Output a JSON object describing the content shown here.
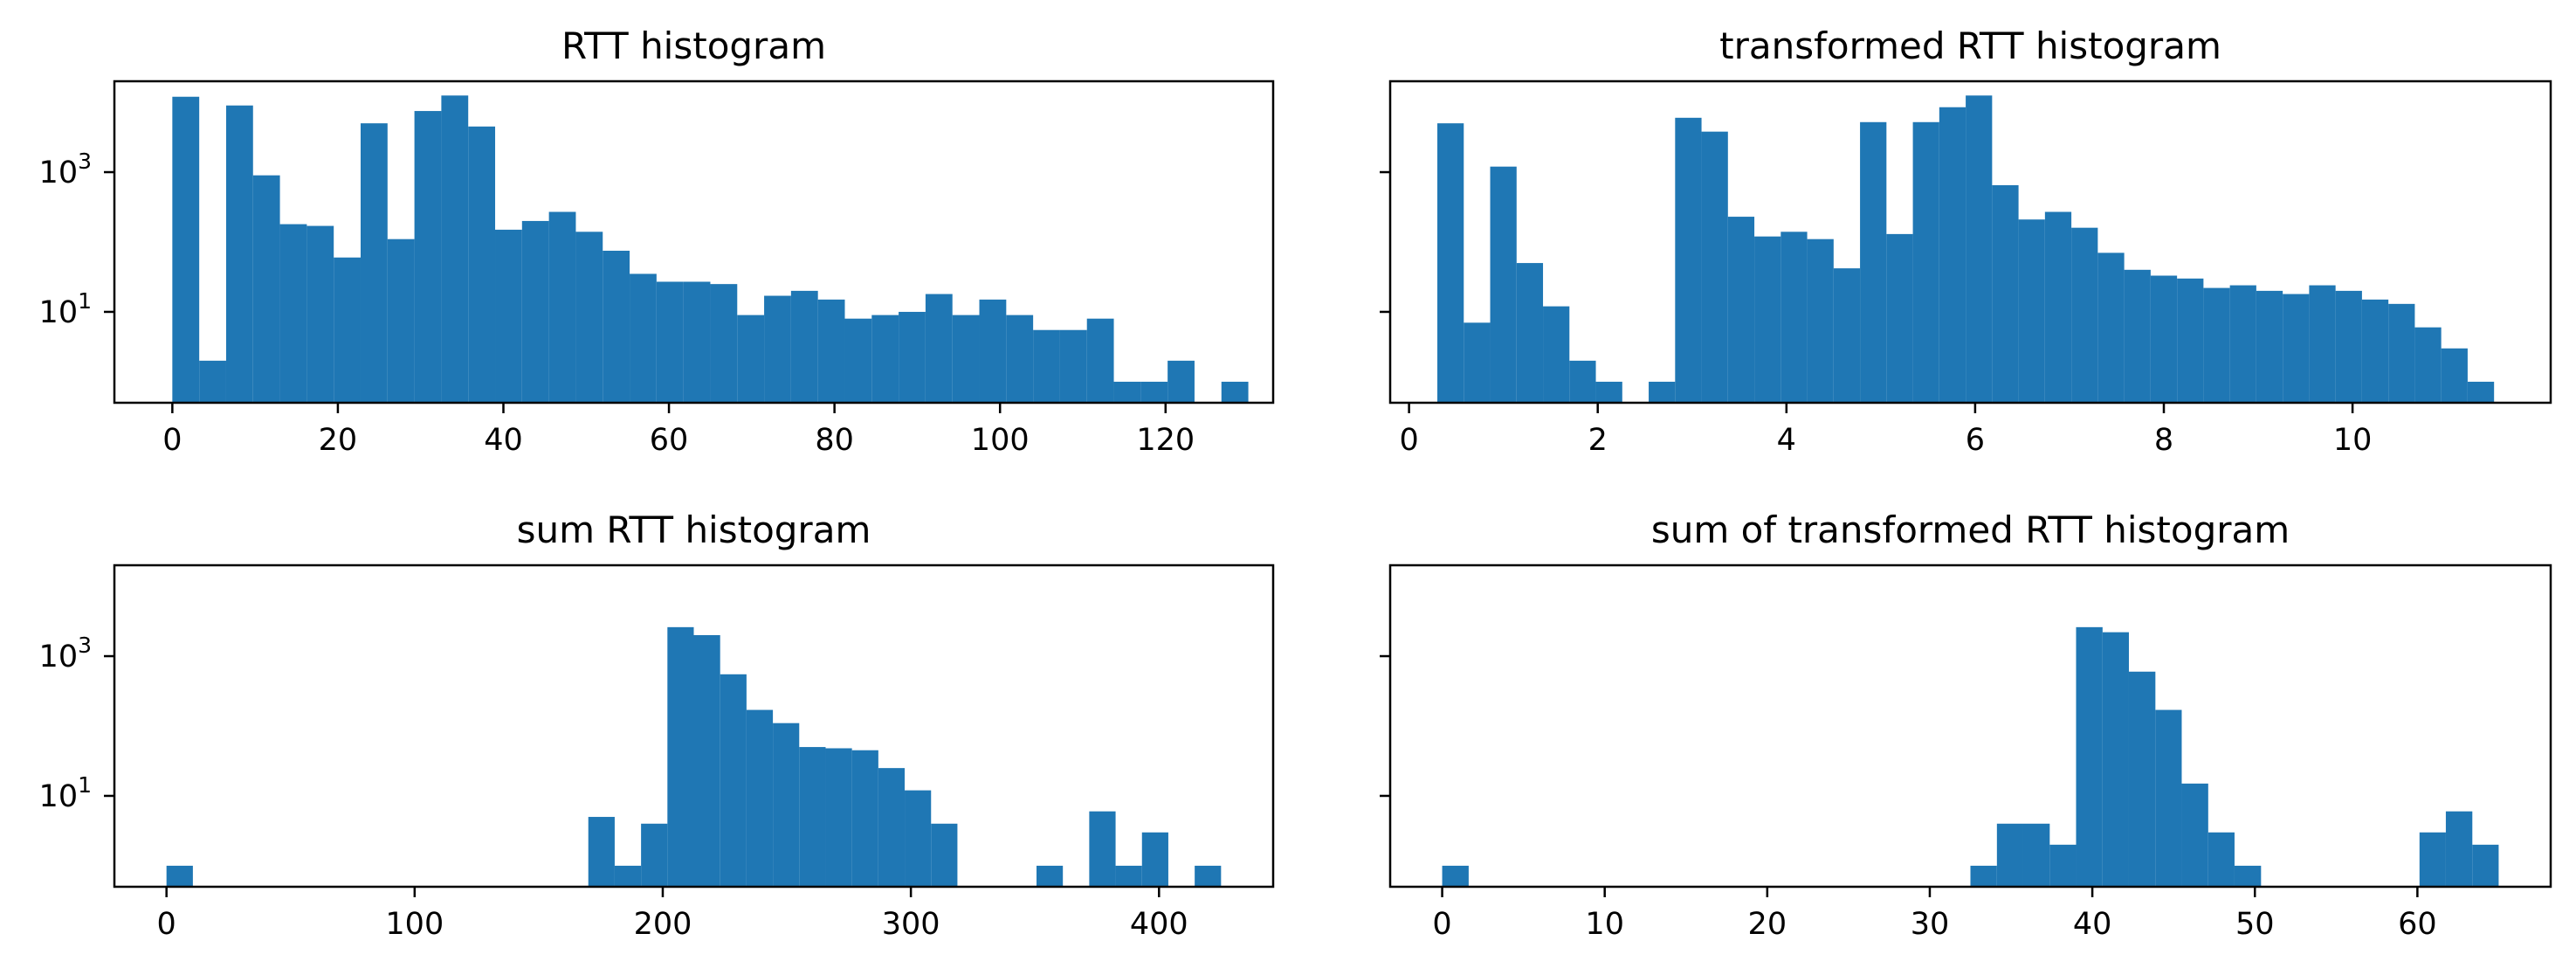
{
  "figure": {
    "bar_color": "#1f77b4",
    "shared_y": true,
    "y_scale": "log"
  },
  "chart_data": [
    {
      "type": "bar",
      "title": "RTT histogram",
      "xlabel": "",
      "ylabel": "",
      "xlim": [
        -7,
        133
      ],
      "ylim": [
        0.5,
        20000
      ],
      "xticks": [
        0,
        20,
        40,
        60,
        80,
        100,
        120
      ],
      "yticks": [
        {
          "value": 10,
          "base": "10",
          "exp": "1"
        },
        {
          "value": 1000,
          "base": "10",
          "exp": "3"
        }
      ],
      "show_ytick_labels": true,
      "bin_edges": [
        0,
        3.25,
        6.5,
        9.75,
        13,
        16.25,
        19.5,
        22.75,
        26,
        29.25,
        32.5,
        35.75,
        39,
        42.25,
        45.5,
        48.75,
        52,
        55.25,
        58.5,
        61.75,
        65,
        68.25,
        71.5,
        74.75,
        78,
        81.25,
        84.5,
        87.75,
        91,
        94.25,
        97.5,
        100.75,
        104,
        107.25,
        110.5,
        113.75,
        117,
        120.25,
        123.5,
        126.75,
        130
      ],
      "counts": [
        12000,
        2,
        9000,
        900,
        180,
        170,
        60,
        5000,
        110,
        7500,
        12500,
        4500,
        150,
        200,
        270,
        140,
        75,
        35,
        27,
        27,
        25,
        9,
        17,
        20,
        15,
        8,
        9,
        10,
        18,
        9,
        15,
        9,
        5.5,
        5.5,
        8,
        1,
        1,
        2,
        0,
        1
      ]
    },
    {
      "type": "bar",
      "title": "transformed RTT histogram",
      "xlabel": "",
      "ylabel": "",
      "xlim": [
        -0.2,
        12.1
      ],
      "ylim": [
        0.5,
        20000
      ],
      "xticks": [
        0,
        2,
        4,
        6,
        8,
        10
      ],
      "yticks": [
        {
          "value": 10,
          "base": "10",
          "exp": "1"
        },
        {
          "value": 1000,
          "base": "10",
          "exp": "3"
        }
      ],
      "show_ytick_labels": false,
      "bin_edges": [
        0.3,
        0.58,
        0.86,
        1.14,
        1.42,
        1.7,
        1.98,
        2.26,
        2.54,
        2.82,
        3.1,
        3.38,
        3.66,
        3.94,
        4.22,
        4.5,
        4.78,
        5.06,
        5.34,
        5.62,
        5.9,
        6.18,
        6.46,
        6.74,
        7.02,
        7.3,
        7.58,
        7.86,
        8.14,
        8.42,
        8.7,
        8.98,
        9.26,
        9.54,
        9.82,
        10.1,
        10.38,
        10.66,
        10.94,
        11.22,
        11.5
      ],
      "counts": [
        5000,
        7,
        1200,
        50,
        12,
        2,
        1,
        0,
        1,
        6000,
        3800,
        230,
        120,
        140,
        110,
        42,
        5200,
        130,
        5200,
        8500,
        12500,
        650,
        210,
        270,
        160,
        70,
        40,
        33,
        30,
        22,
        24,
        20,
        18,
        24,
        20,
        15,
        13,
        6,
        3,
        1
      ]
    },
    {
      "type": "bar",
      "title": "sum RTT histogram",
      "xlabel": "",
      "ylabel": "",
      "xlim": [
        -21,
        446
      ],
      "ylim": [
        0.5,
        20000
      ],
      "xticks": [
        0,
        100,
        200,
        300,
        400
      ],
      "yticks": [
        {
          "value": 10,
          "base": "10",
          "exp": "1"
        },
        {
          "value": 1000,
          "base": "10",
          "exp": "3"
        }
      ],
      "show_ytick_labels": true,
      "bin_edges": [
        0,
        10.63,
        21.25,
        31.88,
        42.5,
        53.13,
        63.75,
        74.38,
        85,
        95.63,
        106.25,
        116.88,
        127.5,
        138.13,
        148.75,
        159.38,
        170,
        180.63,
        191.25,
        201.88,
        212.5,
        223.13,
        233.75,
        244.38,
        255,
        265.63,
        276.25,
        286.88,
        297.5,
        308.13,
        318.75,
        329.38,
        340,
        350.63,
        361.25,
        371.88,
        382.5,
        393.13,
        403.75,
        414.38,
        425
      ],
      "counts": [
        1,
        0,
        0,
        0,
        0,
        0,
        0,
        0,
        0,
        0,
        0,
        0,
        0,
        0,
        0,
        0,
        5,
        1,
        4,
        2600,
        2000,
        550,
        170,
        110,
        50,
        48,
        45,
        25,
        12,
        4,
        0,
        0,
        0,
        1,
        0,
        6,
        1,
        3,
        0,
        1
      ]
    },
    {
      "type": "bar",
      "title": "sum of transformed RTT histogram",
      "xlabel": "",
      "ylabel": "",
      "xlim": [
        -3.2,
        68.2
      ],
      "ylim": [
        0.5,
        20000
      ],
      "xticks": [
        0,
        10,
        20,
        30,
        40,
        50,
        60
      ],
      "yticks": [
        {
          "value": 10,
          "base": "10",
          "exp": "1"
        },
        {
          "value": 1000,
          "base": "10",
          "exp": "3"
        }
      ],
      "show_ytick_labels": false,
      "bin_edges": [
        0,
        1.63,
        3.25,
        4.88,
        6.5,
        8.13,
        9.75,
        11.38,
        13,
        14.63,
        16.25,
        17.88,
        19.5,
        21.13,
        22.75,
        24.38,
        26,
        27.63,
        29.25,
        30.88,
        32.5,
        34.13,
        35.75,
        37.38,
        39,
        40.63,
        42.25,
        43.88,
        45.5,
        47.13,
        48.75,
        50.38,
        52,
        53.63,
        55.25,
        56.88,
        58.5,
        60.13,
        61.75,
        63.38,
        65
      ],
      "counts": [
        1,
        0,
        0,
        0,
        0,
        0,
        0,
        0,
        0,
        0,
        0,
        0,
        0,
        0,
        0,
        0,
        0,
        0,
        0,
        0,
        1,
        4,
        4,
        2,
        2600,
        2200,
        600,
        170,
        15,
        3,
        1,
        0,
        0,
        0,
        0,
        0,
        0,
        3,
        6,
        2
      ]
    }
  ]
}
